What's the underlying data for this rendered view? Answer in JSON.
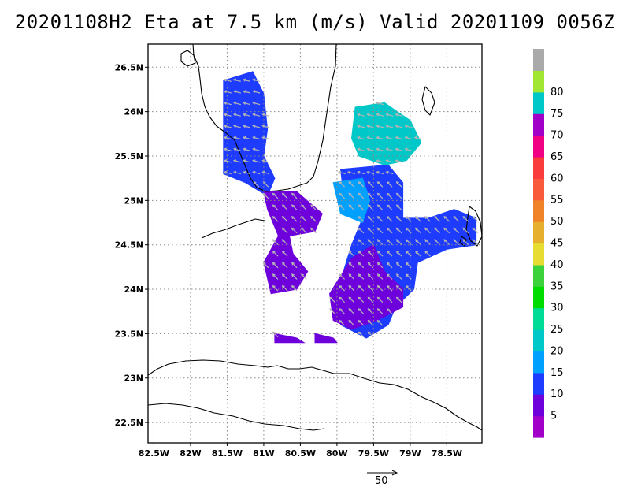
{
  "title": "20201108H2 Eta at 7.5 km (m/s) Valid 20201109  0056Z",
  "chart_data": {
    "type": "heatmap",
    "x_ticks": [
      "82.5W",
      "82W",
      "81.5W",
      "81W",
      "80.5W",
      "80W",
      "79.5W",
      "79W",
      "78.5W"
    ],
    "x_values": [
      -82.5,
      -82,
      -81.5,
      -81,
      -80.5,
      -80,
      -79.5,
      -79,
      -78.5
    ],
    "y_ticks": [
      "26.5N",
      "26N",
      "25.5N",
      "25N",
      "24.5N",
      "24N",
      "23.5N",
      "23N",
      "22.5N"
    ],
    "y_values": [
      26.5,
      26,
      25.5,
      25,
      24.5,
      24,
      23.5,
      23,
      22.5
    ],
    "xlim": [
      -82.58,
      -78.02
    ],
    "ylim": [
      22.27,
      26.76
    ],
    "grid": true,
    "colorbar": {
      "bounds": [
        0,
        5,
        10,
        15,
        20,
        25,
        30,
        35,
        40,
        45,
        50,
        55,
        60,
        65,
        70,
        75,
        80,
        85
      ],
      "labels": [
        "5",
        "10",
        "15",
        "20",
        "25",
        "30",
        "35",
        "40",
        "45",
        "50",
        "55",
        "60",
        "65",
        "70",
        "75",
        "80"
      ],
      "colors": [
        "#a000c8",
        "#6e00dc",
        "#1e3cff",
        "#00a0ff",
        "#00c8c8",
        "#00dc96",
        "#00dc00",
        "#3cd23c",
        "#e6dc32",
        "#e6af2d",
        "#f08228",
        "#fa5a3c",
        "#fa3c3c",
        "#f00082",
        "#a000c8",
        "#00c8c8",
        "#a0e632",
        "#aaaaaa"
      ]
    },
    "vector_reference": {
      "label": "50"
    },
    "wind_regions": [
      {
        "name": "gulf-coast-west",
        "value_range": [
          10,
          15
        ],
        "polygon": [
          [
            -81.55,
            26.35
          ],
          [
            -81.15,
            26.45
          ],
          [
            -81.0,
            26.2
          ],
          [
            -80.95,
            25.8
          ],
          [
            -81.0,
            25.5
          ],
          [
            -80.85,
            25.25
          ],
          [
            -80.95,
            25.05
          ],
          [
            -81.25,
            25.2
          ],
          [
            -81.55,
            25.3
          ],
          [
            -81.55,
            26.35
          ]
        ]
      },
      {
        "name": "florida-keys-band",
        "value_range": [
          5,
          10
        ],
        "polygon": [
          [
            -81.0,
            25.1
          ],
          [
            -80.55,
            25.1
          ],
          [
            -80.2,
            24.85
          ],
          [
            -80.3,
            24.65
          ],
          [
            -80.65,
            24.6
          ],
          [
            -80.6,
            24.4
          ],
          [
            -80.4,
            24.2
          ],
          [
            -80.55,
            24.0
          ],
          [
            -80.9,
            23.95
          ],
          [
            -81.0,
            24.3
          ],
          [
            -80.8,
            24.6
          ],
          [
            -80.95,
            24.9
          ],
          [
            -81.0,
            25.1
          ]
        ]
      },
      {
        "name": "east-main",
        "value_range": [
          10,
          15
        ],
        "polygon": [
          [
            -79.95,
            25.35
          ],
          [
            -79.3,
            25.4
          ],
          [
            -79.1,
            25.2
          ],
          [
            -79.1,
            24.8
          ],
          [
            -78.75,
            24.8
          ],
          [
            -78.4,
            24.9
          ],
          [
            -78.1,
            24.8
          ],
          [
            -78.1,
            24.5
          ],
          [
            -78.5,
            24.45
          ],
          [
            -78.9,
            24.3
          ],
          [
            -78.95,
            24.0
          ],
          [
            -79.2,
            23.8
          ],
          [
            -79.3,
            23.6
          ],
          [
            -79.6,
            23.45
          ],
          [
            -79.95,
            23.6
          ],
          [
            -79.95,
            24.1
          ],
          [
            -79.8,
            24.5
          ],
          [
            -79.65,
            24.8
          ],
          [
            -79.9,
            25.0
          ],
          [
            -79.95,
            25.35
          ]
        ]
      },
      {
        "name": "east-purple-south",
        "value_range": [
          5,
          10
        ],
        "polygon": [
          [
            -80.1,
            23.95
          ],
          [
            -79.8,
            24.35
          ],
          [
            -79.5,
            24.5
          ],
          [
            -79.35,
            24.2
          ],
          [
            -79.1,
            24.0
          ],
          [
            -79.1,
            23.8
          ],
          [
            -79.45,
            23.65
          ],
          [
            -79.8,
            23.55
          ],
          [
            -80.05,
            23.65
          ],
          [
            -80.1,
            23.95
          ]
        ]
      },
      {
        "name": "east-cyan-north",
        "value_range": [
          20,
          25
        ],
        "polygon": [
          [
            -79.75,
            26.05
          ],
          [
            -79.35,
            26.1
          ],
          [
            -79.0,
            25.9
          ],
          [
            -78.85,
            25.65
          ],
          [
            -79.05,
            25.45
          ],
          [
            -79.35,
            25.4
          ],
          [
            -79.7,
            25.5
          ],
          [
            -79.8,
            25.7
          ],
          [
            -79.75,
            26.05
          ]
        ]
      },
      {
        "name": "east-cyan-west",
        "value_range": [
          15,
          20
        ],
        "polygon": [
          [
            -80.05,
            25.2
          ],
          [
            -79.65,
            25.25
          ],
          [
            -79.55,
            25.0
          ],
          [
            -79.65,
            24.75
          ],
          [
            -79.95,
            24.85
          ],
          [
            -80.05,
            25.2
          ]
        ]
      },
      {
        "name": "keys-lower-patch",
        "value_range": [
          5,
          10
        ],
        "polygon": [
          [
            -80.85,
            23.5
          ],
          [
            -80.55,
            23.45
          ],
          [
            -80.45,
            23.4
          ],
          [
            -80.85,
            23.4
          ],
          [
            -80.85,
            23.5
          ]
        ]
      },
      {
        "name": "southern-patch",
        "value_range": [
          5,
          10
        ],
        "polygon": [
          [
            -80.3,
            23.5
          ],
          [
            -80.05,
            23.45
          ],
          [
            -80.0,
            23.4
          ],
          [
            -80.3,
            23.4
          ],
          [
            -80.3,
            23.5
          ]
        ]
      }
    ]
  }
}
